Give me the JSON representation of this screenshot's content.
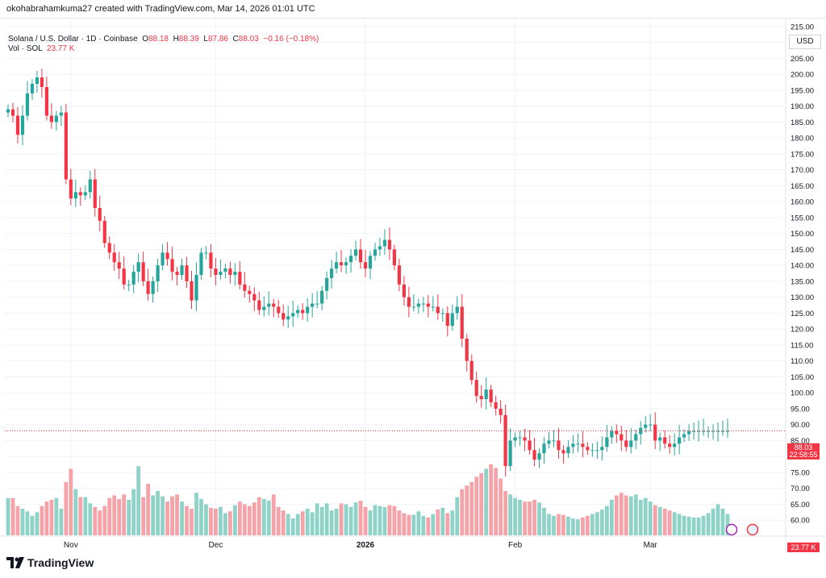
{
  "header": {
    "credit": "okohabrahamkuma27 created with TradingView.com, Mar 14, 2026 01:01 UTC"
  },
  "legend": {
    "symbol": "Solana / U.S. Dollar · 1D · Coinbase",
    "o_label": "O",
    "o_value": "88.18",
    "h_label": "H",
    "h_value": "88.39",
    "l_label": "L",
    "l_value": "87.86",
    "c_label": "C",
    "c_value": "88.03",
    "change": "−0.16 (−0.18%)",
    "vol_label": "Vol · SOL",
    "vol_value": "23.77 K"
  },
  "price_axis": {
    "currency": "USD",
    "last_price": "88.03",
    "countdown": "22:58:55",
    "volume_tag": "23.77 K"
  },
  "footer": {
    "brand": "TradingView"
  },
  "colors": {
    "up": "#26a69a",
    "down": "#f23645",
    "up_volume": "#8fd3c8",
    "down_volume": "#f5a3a8",
    "grid": "#f0f3fa",
    "axis_text": "#131722"
  },
  "chart_data": {
    "type": "candlestick",
    "ylim": [
      55,
      217.5
    ],
    "y_ticks": [
      215,
      210,
      205,
      200,
      195,
      190,
      185,
      180,
      175,
      170,
      165,
      160,
      155,
      150,
      145,
      140,
      135,
      130,
      125,
      120,
      115,
      110,
      105,
      100,
      95,
      90,
      85,
      80,
      75,
      70,
      65,
      60
    ],
    "x_tick_labels": [
      {
        "label": "Nov",
        "bar": 13
      },
      {
        "label": "Dec",
        "bar": 43
      },
      {
        "label": "2026",
        "bar": 74
      },
      {
        "label": "Feb",
        "bar": 105
      },
      {
        "label": "Mar",
        "bar": 133
      }
    ],
    "bar_count": 150,
    "last_close": 88.03,
    "closes": [
      189,
      187,
      181,
      187,
      194,
      197,
      199,
      196,
      187,
      185,
      187,
      188,
      167,
      161,
      163,
      162,
      163,
      167,
      158,
      154,
      147,
      144,
      141,
      139,
      134,
      134,
      138,
      141,
      135,
      131,
      135,
      140,
      144,
      142,
      138,
      137,
      140,
      135,
      129,
      137,
      144,
      144,
      139,
      137,
      138,
      139,
      137,
      138,
      134,
      132,
      131,
      129,
      126,
      127,
      128,
      127,
      125,
      123,
      124,
      125,
      126,
      125,
      127,
      128,
      128,
      132,
      136,
      139,
      141,
      140,
      141,
      143,
      145,
      141,
      139,
      143,
      145,
      146,
      148,
      145,
      140,
      134,
      130,
      127,
      127,
      128,
      128,
      127,
      127,
      125,
      125,
      121,
      125,
      127,
      117,
      110,
      104,
      99,
      98,
      101,
      97,
      95,
      93,
      77,
      85,
      86,
      86,
      85,
      82,
      79,
      81,
      84,
      85,
      85,
      82,
      81,
      83,
      84,
      84,
      83,
      82,
      82,
      82,
      83,
      86,
      88,
      87,
      85,
      83,
      85,
      87,
      89,
      90,
      90,
      85,
      86,
      84,
      83,
      84,
      86,
      87,
      88,
      88,
      88,
      88,
      88,
      88,
      88,
      88,
      88
    ],
    "opens": [
      188,
      189,
      187,
      181,
      187,
      194,
      197,
      199,
      196,
      187,
      185,
      187,
      188,
      167,
      161,
      163,
      162,
      163,
      167,
      158,
      154,
      147,
      144,
      141,
      139,
      134,
      134,
      138,
      141,
      135,
      131,
      135,
      140,
      144,
      142,
      138,
      137,
      140,
      135,
      129,
      137,
      144,
      144,
      139,
      137,
      138,
      139,
      137,
      138,
      134,
      132,
      131,
      129,
      126,
      127,
      128,
      127,
      125,
      123,
      124,
      125,
      126,
      125,
      127,
      128,
      128,
      132,
      136,
      139,
      141,
      140,
      141,
      143,
      145,
      141,
      139,
      143,
      145,
      146,
      148,
      145,
      140,
      134,
      130,
      127,
      127,
      128,
      128,
      127,
      127,
      125,
      125,
      121,
      125,
      127,
      117,
      110,
      104,
      99,
      98,
      101,
      97,
      95,
      93,
      77,
      85,
      86,
      86,
      85,
      82,
      79,
      81,
      84,
      85,
      85,
      82,
      81,
      83,
      84,
      84,
      83,
      82,
      82,
      82,
      83,
      86,
      88,
      87,
      85,
      83,
      85,
      87,
      89,
      90,
      90,
      85,
      86,
      84,
      83,
      84,
      86,
      87,
      88,
      88,
      88,
      88,
      88,
      88,
      88,
      88
    ],
    "volume_k": [
      42,
      42,
      33,
      30,
      27,
      22,
      26,
      33,
      38,
      40,
      42,
      30,
      60,
      75,
      52,
      43,
      43,
      36,
      32,
      28,
      33,
      42,
      45,
      41,
      46,
      40,
      52,
      78,
      43,
      58,
      45,
      50,
      44,
      38,
      44,
      46,
      38,
      33,
      30,
      48,
      41,
      35,
      31,
      30,
      32,
      25,
      27,
      34,
      38,
      35,
      33,
      37,
      43,
      41,
      39,
      46,
      32,
      28,
      24,
      19,
      24,
      27,
      30,
      26,
      36,
      32,
      36,
      28,
      30,
      36,
      35,
      32,
      37,
      39,
      32,
      28,
      34,
      33,
      32,
      34,
      33,
      28,
      25,
      23,
      23,
      27,
      22,
      20,
      24,
      29,
      31,
      25,
      28,
      43,
      52,
      56,
      60,
      66,
      70,
      75,
      80,
      76,
      64,
      50,
      46,
      42,
      40,
      38,
      38,
      40,
      37,
      31,
      24,
      22,
      24,
      23,
      21,
      19,
      18,
      20,
      22,
      24,
      26,
      29,
      33,
      40,
      45,
      48,
      45,
      44,
      46,
      40,
      42,
      38,
      34,
      32,
      30,
      28,
      26,
      24,
      22,
      21,
      20,
      20,
      22,
      25,
      30,
      35,
      30,
      24
    ]
  }
}
